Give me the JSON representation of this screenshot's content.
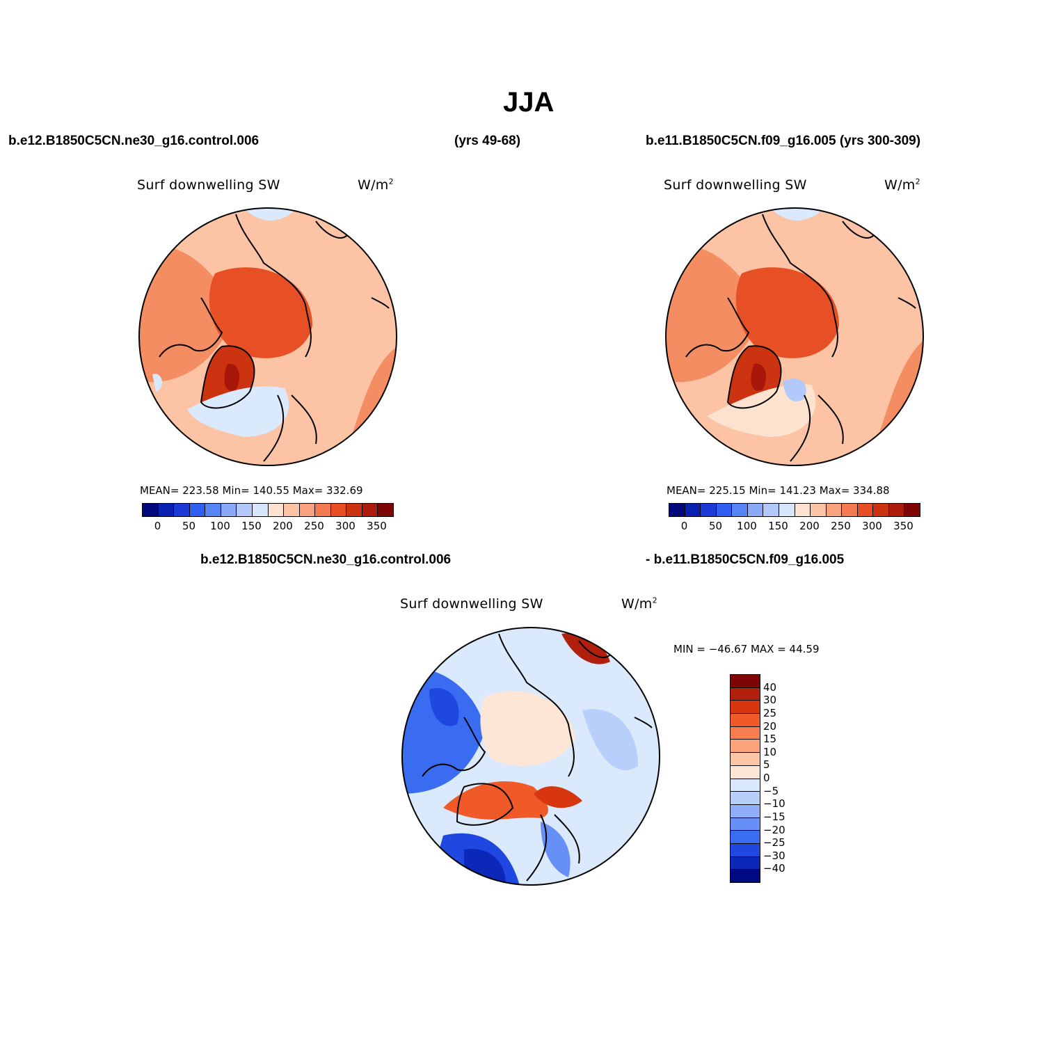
{
  "figure": {
    "title": "JJA",
    "case_a": "b.e12.B1850C5CN.ne30_g16.control.006",
    "case_a_years": "(yrs 49-68)",
    "case_b": "b.e11.B1850C5CN.f09_g16.005 (yrs 300-309)",
    "diff_case_a": "b.e12.B1850C5CN.ne30_g16.control.006",
    "diff_case_b": "- b.e11.B1850C5CN.f09_g16.005"
  },
  "panels": [
    {
      "variable": "Surf  downwelling  SW",
      "units_base": "W/m",
      "units_sup": "2",
      "stats": "MEAN= 223.58    Min= 140.55    Max= 332.69"
    },
    {
      "variable": "Surf  downwelling  SW",
      "units_base": "W/m",
      "units_sup": "2",
      "stats": "MEAN= 225.15    Min= 141.23    Max= 334.88"
    },
    {
      "variable": "Surf  downwelling  SW",
      "units_base": "W/m",
      "units_sup": "2",
      "stats": "MIN = −46.67  MAX =   44.59"
    }
  ],
  "colorbar_abs": {
    "colors": [
      "#00087c",
      "#0a20b0",
      "#1a3bd6",
      "#2e5ff0",
      "#5685f6",
      "#8aa9f9",
      "#b3c8fb",
      "#d8e6fd",
      "#fde2cf",
      "#fcc3a4",
      "#f9a27d",
      "#f37a51",
      "#e84d24",
      "#cc3411",
      "#ad1c0a",
      "#7d0604"
    ],
    "ticks": [
      "0",
      "50",
      "100",
      "150",
      "200",
      "250",
      "300",
      "350"
    ]
  },
  "colorbar_diff": {
    "colors": [
      "#7d0604",
      "#b0200c",
      "#d7360f",
      "#ef5a28",
      "#f77d4f",
      "#fba47c",
      "#fdc6a6",
      "#fde6d5",
      "#dbe9fd",
      "#b9cffb",
      "#8fb0f8",
      "#6690f5",
      "#3a6cf1",
      "#1f48e0",
      "#0c28b8",
      "#000a80"
    ],
    "ticks": [
      "40",
      "30",
      "25",
      "20",
      "15",
      "10",
      "5",
      "0",
      "−5",
      "−10",
      "−15",
      "−20",
      "−25",
      "−30",
      "−40"
    ]
  },
  "colors": {
    "greenland_dark": "#a9170b",
    "arctic_ocean": "#e65024",
    "land_orange": "#f58d63"
  }
}
